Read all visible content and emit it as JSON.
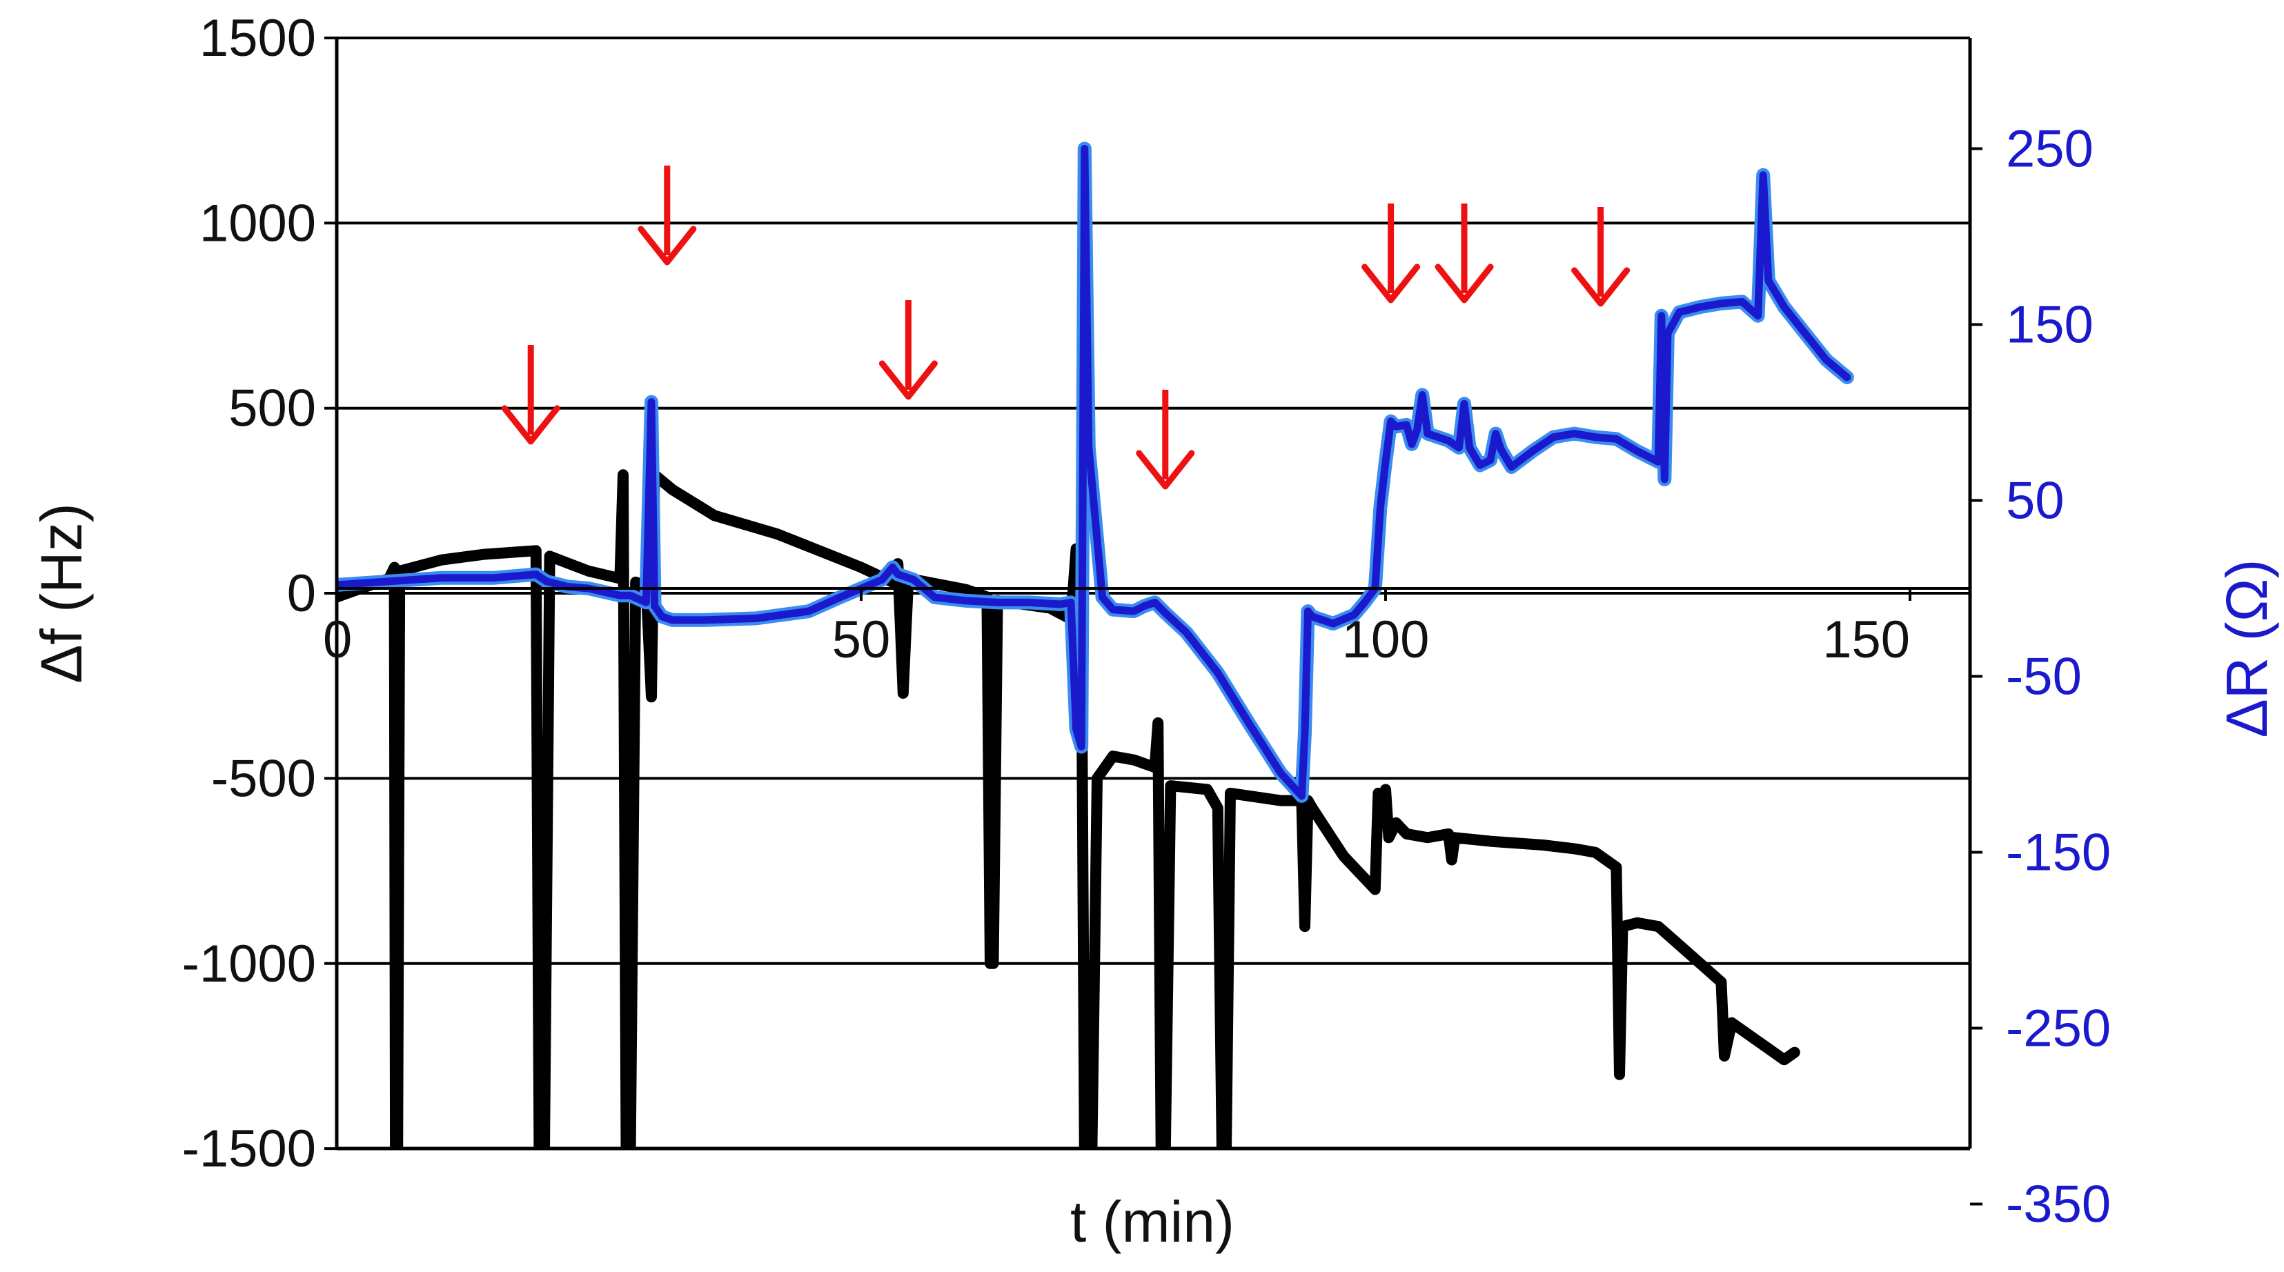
{
  "chart_data": {
    "type": "line",
    "title": "",
    "xlabel": "t (min)",
    "ylabel_left": "Δf (Hz)",
    "ylabel_right": "ΔR (Ω)",
    "xlim": [
      0,
      150
    ],
    "ylim_left": [
      -1500,
      1500
    ],
    "ylim_right": [
      -350,
      300
    ],
    "x_ticks": [
      "0",
      "50",
      "100",
      "150"
    ],
    "y_left_ticks": [
      "1500",
      "1000",
      "500",
      "0",
      "-500",
      "-1000",
      "-1500"
    ],
    "y_right_ticks": [
      "250",
      "150",
      "50",
      "-50",
      "-150",
      "-250",
      "-350"
    ],
    "grid": true,
    "colors": {
      "delta_f": "#000000",
      "delta_r": "#1a1acc",
      "delta_r_edge": "#3a8cf0",
      "arrows": "#ee1111"
    },
    "series": [
      {
        "axis": "left",
        "points": [
          [
            0,
            -10
          ],
          [
            3,
            20
          ],
          [
            5,
            40
          ],
          [
            5.5,
            70
          ],
          [
            5.6,
            -1500
          ],
          [
            5.8,
            -1500
          ],
          [
            6,
            60
          ],
          [
            10,
            90
          ],
          [
            14,
            105
          ],
          [
            19,
            115
          ],
          [
            19.3,
            -1500
          ],
          [
            19.8,
            -1500
          ],
          [
            20.3,
            100
          ],
          [
            24,
            60
          ],
          [
            27,
            40
          ],
          [
            27.3,
            320
          ],
          [
            27.6,
            -1500
          ],
          [
            28,
            -1500
          ],
          [
            28.5,
            30
          ],
          [
            29.5,
            20
          ],
          [
            30,
            -280
          ],
          [
            30.3,
            320
          ],
          [
            32,
            280
          ],
          [
            36,
            210
          ],
          [
            42,
            160
          ],
          [
            50,
            70
          ],
          [
            53,
            30
          ],
          [
            53.5,
            80
          ],
          [
            54,
            -270
          ],
          [
            54.5,
            40
          ],
          [
            60,
            10
          ],
          [
            62,
            -10
          ],
          [
            62.3,
            -1000
          ],
          [
            62.6,
            -1000
          ],
          [
            63,
            -20
          ],
          [
            68,
            -40
          ],
          [
            70,
            -70
          ],
          [
            70.5,
            120
          ],
          [
            71,
            -80
          ],
          [
            71.3,
            -1500
          ],
          [
            72,
            -1500
          ],
          [
            72.5,
            -500
          ],
          [
            74,
            -440
          ],
          [
            76,
            -450
          ],
          [
            78,
            -470
          ],
          [
            78.3,
            -350
          ],
          [
            78.6,
            -1500
          ],
          [
            79,
            -1500
          ],
          [
            79.5,
            -520
          ],
          [
            83,
            -530
          ],
          [
            84,
            -580
          ],
          [
            84.4,
            -1500
          ],
          [
            84.8,
            -1500
          ],
          [
            85.2,
            -540
          ],
          [
            90,
            -560
          ],
          [
            92,
            -560
          ],
          [
            92.3,
            -900
          ],
          [
            92.6,
            -560
          ],
          [
            93,
            -580
          ],
          [
            96,
            -710
          ],
          [
            99,
            -800
          ],
          [
            99.3,
            -540
          ],
          [
            99.6,
            -570
          ],
          [
            100,
            -530
          ],
          [
            100.3,
            -660
          ],
          [
            101,
            -620
          ],
          [
            102,
            -650
          ],
          [
            104,
            -660
          ],
          [
            106,
            -650
          ],
          [
            106.3,
            -720
          ],
          [
            106.6,
            -660
          ],
          [
            110,
            -670
          ],
          [
            115,
            -680
          ],
          [
            118,
            -690
          ],
          [
            120,
            -700
          ],
          [
            122,
            -740
          ],
          [
            122.3,
            -1300
          ],
          [
            122.6,
            -900
          ],
          [
            124,
            -890
          ],
          [
            126,
            -900
          ],
          [
            128,
            -950
          ],
          [
            130,
            -1000
          ],
          [
            132,
            -1050
          ],
          [
            132.3,
            -1250
          ],
          [
            133,
            -1160
          ],
          [
            134,
            -1180
          ],
          [
            136,
            -1220
          ],
          [
            138,
            -1260
          ],
          [
            139,
            -1240
          ]
        ]
      },
      {
        "axis": "right",
        "points": [
          [
            0,
            2
          ],
          [
            5,
            4
          ],
          [
            10,
            6
          ],
          [
            15,
            6
          ],
          [
            19,
            8
          ],
          [
            20,
            4
          ],
          [
            22,
            1
          ],
          [
            24,
            0
          ],
          [
            27,
            -4
          ],
          [
            28,
            -4
          ],
          [
            29.5,
            -8
          ],
          [
            30,
            106
          ],
          [
            30.3,
            -10
          ],
          [
            31,
            -16
          ],
          [
            32,
            -18
          ],
          [
            35,
            -18
          ],
          [
            40,
            -17
          ],
          [
            45,
            -13
          ],
          [
            48,
            -5
          ],
          [
            52,
            5
          ],
          [
            53,
            12
          ],
          [
            53.5,
            8
          ],
          [
            55,
            5
          ],
          [
            57,
            -5
          ],
          [
            60,
            -7
          ],
          [
            63,
            -8
          ],
          [
            66,
            -8
          ],
          [
            69,
            -9
          ],
          [
            70,
            -8
          ],
          [
            70.5,
            -80
          ],
          [
            71,
            -90
          ],
          [
            71.3,
            250
          ],
          [
            71.7,
            80
          ],
          [
            73,
            -5
          ],
          [
            74,
            -12
          ],
          [
            76,
            -13
          ],
          [
            77,
            -10
          ],
          [
            78,
            -8
          ],
          [
            79,
            -14
          ],
          [
            81,
            -25
          ],
          [
            84,
            -48
          ],
          [
            87,
            -77
          ],
          [
            90,
            -105
          ],
          [
            92,
            -118
          ],
          [
            92.3,
            -82
          ],
          [
            92.6,
            -13
          ],
          [
            93,
            -16
          ],
          [
            95,
            -20
          ],
          [
            97,
            -15
          ],
          [
            98,
            -8
          ],
          [
            99,
            0
          ],
          [
            99.5,
            46
          ],
          [
            100,
            72
          ],
          [
            100.5,
            95
          ],
          [
            101,
            92
          ],
          [
            102,
            93
          ],
          [
            102.5,
            82
          ],
          [
            103,
            90
          ],
          [
            103.5,
            110
          ],
          [
            104,
            88
          ],
          [
            106,
            84
          ],
          [
            107,
            80
          ],
          [
            107.5,
            105
          ],
          [
            108,
            80
          ],
          [
            109,
            70
          ],
          [
            110,
            73
          ],
          [
            110.5,
            88
          ],
          [
            111,
            79
          ],
          [
            112,
            69
          ],
          [
            114,
            78
          ],
          [
            116,
            86
          ],
          [
            118,
            88
          ],
          [
            120,
            86
          ],
          [
            122,
            85
          ],
          [
            124,
            78
          ],
          [
            126,
            72
          ],
          [
            126.3,
            155
          ],
          [
            126.6,
            62
          ],
          [
            126.9,
            145
          ],
          [
            128,
            157
          ],
          [
            130,
            160
          ],
          [
            132,
            162
          ],
          [
            134,
            163
          ],
          [
            135.5,
            155
          ],
          [
            136,
            235
          ],
          [
            136.5,
            175
          ],
          [
            138,
            160
          ],
          [
            140,
            145
          ],
          [
            142,
            130
          ],
          [
            143,
            125
          ],
          [
            144,
            120
          ]
        ]
      }
    ],
    "annotations": {
      "red_down_arrows_at_x": [
        18.5,
        31.5,
        54.5,
        79,
        100.5,
        107.5,
        120.5
      ]
    }
  }
}
